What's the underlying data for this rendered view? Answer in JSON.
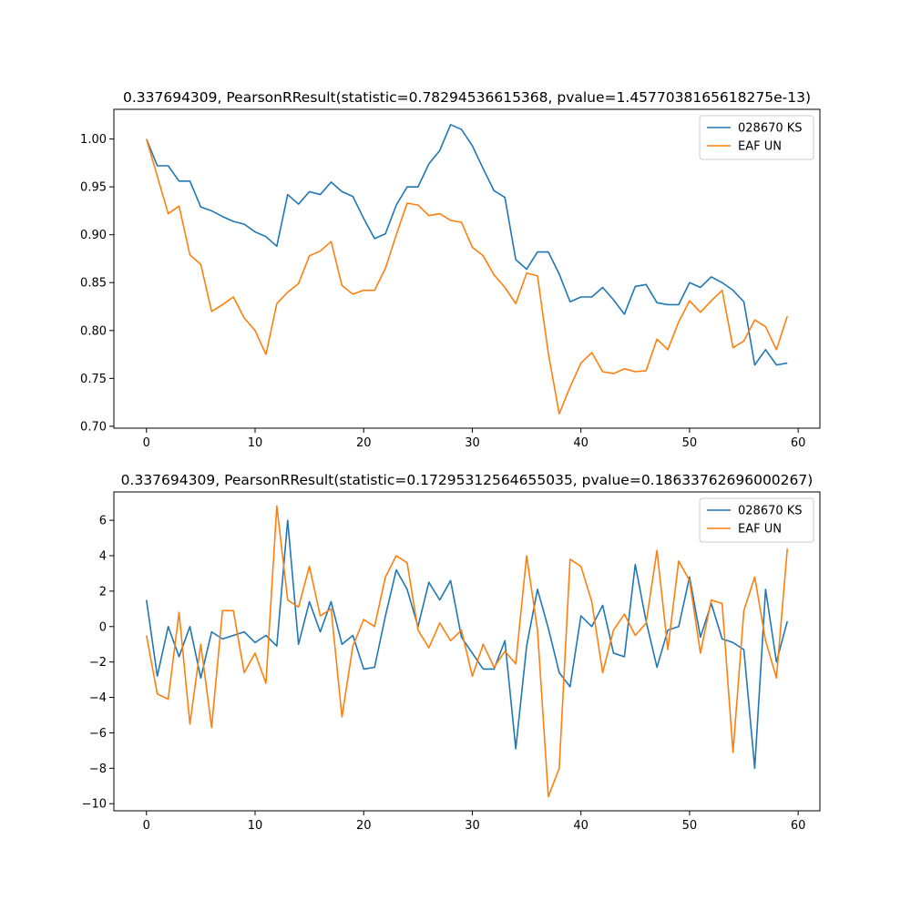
{
  "chart_data": [
    {
      "type": "line",
      "title": "0.337694309, PearsonRResult(statistic=0.78294536615368, pvalue=1.4577038165618275e-13)",
      "xlabel": "",
      "ylabel": "",
      "xlim": [
        -3,
        62
      ],
      "ylim": [
        0.698,
        1.031
      ],
      "xticks": [
        0,
        10,
        20,
        30,
        40,
        50,
        60
      ],
      "xtick_labels": [
        "0",
        "10",
        "20",
        "30",
        "40",
        "50",
        "60"
      ],
      "yticks": [
        0.7,
        0.75,
        0.8,
        0.85,
        0.9,
        0.95,
        1.0
      ],
      "ytick_labels": [
        "0.70",
        "0.75",
        "0.80",
        "0.85",
        "0.90",
        "0.95",
        "1.00"
      ],
      "grid": false,
      "legend": "upper right",
      "series": [
        {
          "name": "028670 KS",
          "color": "#1f77b4",
          "values": [
            1.0,
            0.972,
            0.972,
            0.956,
            0.956,
            0.929,
            0.925,
            0.919,
            0.914,
            0.911,
            0.903,
            0.898,
            0.888,
            0.942,
            0.932,
            0.945,
            0.942,
            0.955,
            0.945,
            0.94,
            0.917,
            0.896,
            0.901,
            0.931,
            0.95,
            0.95,
            0.974,
            0.988,
            1.015,
            1.01,
            0.993,
            0.969,
            0.946,
            0.939,
            0.874,
            0.864,
            0.882,
            0.882,
            0.859,
            0.83,
            0.835,
            0.835,
            0.845,
            0.832,
            0.817,
            0.846,
            0.848,
            0.829,
            0.827,
            0.827,
            0.85,
            0.845,
            0.856,
            0.85,
            0.842,
            0.83,
            0.764,
            0.78,
            0.764,
            0.766
          ]
        },
        {
          "name": "EAF UN",
          "color": "#ff7f0e",
          "values": [
            1.0,
            0.961,
            0.922,
            0.93,
            0.879,
            0.869,
            0.82,
            0.827,
            0.835,
            0.813,
            0.8,
            0.775,
            0.828,
            0.84,
            0.849,
            0.878,
            0.883,
            0.893,
            0.847,
            0.838,
            0.842,
            0.842,
            0.865,
            0.9,
            0.933,
            0.931,
            0.92,
            0.922,
            0.915,
            0.913,
            0.887,
            0.878,
            0.858,
            0.845,
            0.828,
            0.86,
            0.857,
            0.776,
            0.713,
            0.741,
            0.766,
            0.777,
            0.757,
            0.755,
            0.76,
            0.757,
            0.758,
            0.791,
            0.78,
            0.809,
            0.831,
            0.819,
            0.831,
            0.842,
            0.782,
            0.789,
            0.811,
            0.804,
            0.78,
            0.815
          ]
        }
      ]
    },
    {
      "type": "line",
      "title": "0.337694309, PearsonRResult(statistic=0.17295312564655035, pvalue=0.18633762696000267)",
      "xlabel": "",
      "ylabel": "",
      "xlim": [
        -3,
        62
      ],
      "ylim": [
        -10.4,
        7.6
      ],
      "xticks": [
        0,
        10,
        20,
        30,
        40,
        50,
        60
      ],
      "xtick_labels": [
        "0",
        "10",
        "20",
        "30",
        "40",
        "50",
        "60"
      ],
      "yticks": [
        -10,
        -8,
        -6,
        -4,
        -2,
        0,
        2,
        4,
        6
      ],
      "ytick_labels": [
        "−10",
        "−8",
        "−6",
        "−4",
        "−2",
        "0",
        "2",
        "4",
        "6"
      ],
      "grid": false,
      "legend": "upper right",
      "series": [
        {
          "name": "028670 KS",
          "color": "#1f77b4",
          "values": [
            1.5,
            -2.8,
            0.0,
            -1.7,
            0.0,
            -2.9,
            -0.3,
            -0.7,
            -0.5,
            -0.3,
            -0.9,
            -0.5,
            -1.1,
            6.0,
            -1.0,
            1.4,
            -0.3,
            1.4,
            -1.0,
            -0.5,
            -2.4,
            -2.3,
            0.6,
            3.2,
            2.1,
            0.0,
            2.5,
            1.5,
            2.6,
            -0.6,
            -1.5,
            -2.4,
            -2.4,
            -0.8,
            -6.9,
            -1.1,
            2.1,
            -0.1,
            -2.6,
            -3.4,
            0.6,
            0.0,
            1.2,
            -1.5,
            -1.7,
            3.5,
            0.3,
            -2.3,
            -0.2,
            0.0,
            2.8,
            -0.6,
            1.3,
            -0.7,
            -0.9,
            -1.3,
            -8.0,
            2.1,
            -2.0,
            0.3
          ]
        },
        {
          "name": "EAF UN",
          "color": "#ff7f0e",
          "values": [
            -0.5,
            -3.8,
            -4.1,
            0.8,
            -5.5,
            -1.0,
            -5.7,
            0.9,
            0.9,
            -2.6,
            -1.5,
            -3.2,
            6.8,
            1.5,
            1.1,
            3.4,
            0.6,
            1.0,
            -5.1,
            -1.1,
            0.4,
            0.0,
            2.8,
            4.0,
            3.6,
            -0.2,
            -1.2,
            0.2,
            -0.8,
            -0.2,
            -2.8,
            -1.0,
            -2.3,
            -1.4,
            -2.1,
            4.0,
            -0.2,
            -9.6,
            -8.0,
            3.8,
            3.4,
            1.4,
            -2.6,
            -0.2,
            0.7,
            -0.5,
            0.2,
            4.3,
            -1.3,
            3.7,
            2.6,
            -1.5,
            1.5,
            1.3,
            -7.1,
            0.9,
            2.8,
            -0.8,
            -2.9,
            4.4
          ]
        }
      ]
    }
  ]
}
